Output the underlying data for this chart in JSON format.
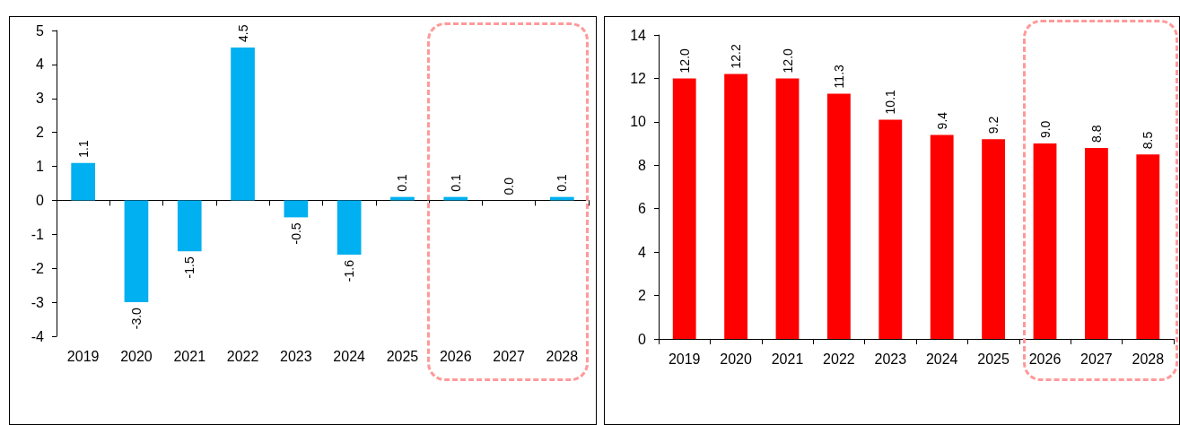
{
  "chart_data": [
    {
      "type": "bar",
      "categories": [
        "2019",
        "2020",
        "2021",
        "2022",
        "2023",
        "2024",
        "2025",
        "2026",
        "2027",
        "2028"
      ],
      "values": [
        1.1,
        -3.0,
        -1.5,
        4.5,
        -0.5,
        -1.6,
        0.1,
        0.1,
        0.0,
        0.1
      ],
      "value_labels": [
        "1.1",
        "-3.0",
        "-1.5",
        "4.5",
        "-0.5",
        "-1.6",
        "0.1",
        "0.1",
        "0.0",
        "0.1"
      ],
      "color": "#00b0f0",
      "ylim": [
        -4,
        5
      ],
      "yticks": [
        -4,
        -3,
        -2,
        -1,
        0,
        1,
        2,
        3,
        4,
        5
      ]
    },
    {
      "type": "bar",
      "categories": [
        "2019",
        "2020",
        "2021",
        "2022",
        "2023",
        "2024",
        "2025",
        "2026",
        "2027",
        "2028"
      ],
      "values": [
        12.0,
        12.2,
        12.0,
        11.3,
        10.1,
        9.4,
        9.2,
        9.0,
        8.8,
        8.5
      ],
      "value_labels": [
        "12.0",
        "12.2",
        "12.0",
        "11.3",
        "10.1",
        "9.4",
        "9.2",
        "9.0",
        "8.8",
        "8.5"
      ],
      "color": "#ff0000",
      "ylim": [
        0,
        14
      ],
      "yticks": [
        0,
        2,
        4,
        6,
        8,
        10,
        12,
        14
      ]
    }
  ]
}
